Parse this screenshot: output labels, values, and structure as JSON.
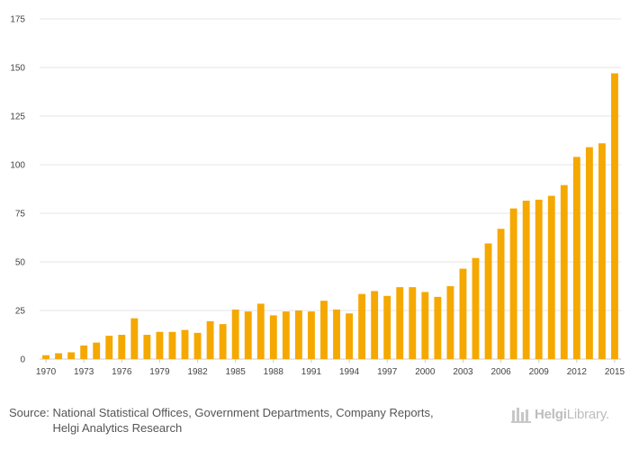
{
  "chart_data": {
    "type": "bar",
    "title": "",
    "xlabel": "",
    "ylabel": "",
    "ylim": [
      0,
      175
    ],
    "yticks": [
      0,
      25,
      50,
      75,
      100,
      125,
      150,
      175
    ],
    "xtick_labels": [
      "1970",
      "1973",
      "1976",
      "1979",
      "1982",
      "1985",
      "1988",
      "1991",
      "1994",
      "1997",
      "2000",
      "2003",
      "2006",
      "2009",
      "2012",
      "2015"
    ],
    "bar_color": "#f5a800",
    "grid": true,
    "categories": [
      "1970",
      "1971",
      "1972",
      "1973",
      "1974",
      "1975",
      "1976",
      "1977",
      "1978",
      "1979",
      "1980",
      "1981",
      "1982",
      "1983",
      "1984",
      "1985",
      "1986",
      "1987",
      "1988",
      "1989",
      "1990",
      "1991",
      "1992",
      "1993",
      "1994",
      "1995",
      "1996",
      "1997",
      "1998",
      "1999",
      "2000",
      "2001",
      "2002",
      "2003",
      "2004",
      "2005",
      "2006",
      "2007",
      "2008",
      "2009",
      "2010",
      "2011",
      "2012",
      "2013",
      "2014",
      "2015"
    ],
    "values": [
      2.0,
      3.0,
      3.5,
      7.0,
      8.5,
      12.0,
      12.5,
      21.0,
      12.5,
      14.0,
      14.0,
      15.0,
      13.5,
      19.5,
      18.0,
      25.5,
      24.5,
      28.5,
      22.5,
      24.5,
      25.0,
      24.5,
      30.0,
      25.5,
      23.5,
      33.5,
      35.0,
      32.5,
      37.0,
      37.0,
      34.5,
      32.0,
      37.5,
      46.5,
      52.0,
      59.5,
      67.0,
      77.5,
      81.5,
      82.0,
      84.0,
      89.5,
      104.0,
      109.0,
      111.0,
      147.0
    ]
  },
  "footer": {
    "source_label": "Source:",
    "source_line1": "National Statistical Offices, Government Departments, Company Reports,",
    "source_line2": "Helgi Analytics Research",
    "logo_part1": "Helgi",
    "logo_part2": "Library."
  }
}
